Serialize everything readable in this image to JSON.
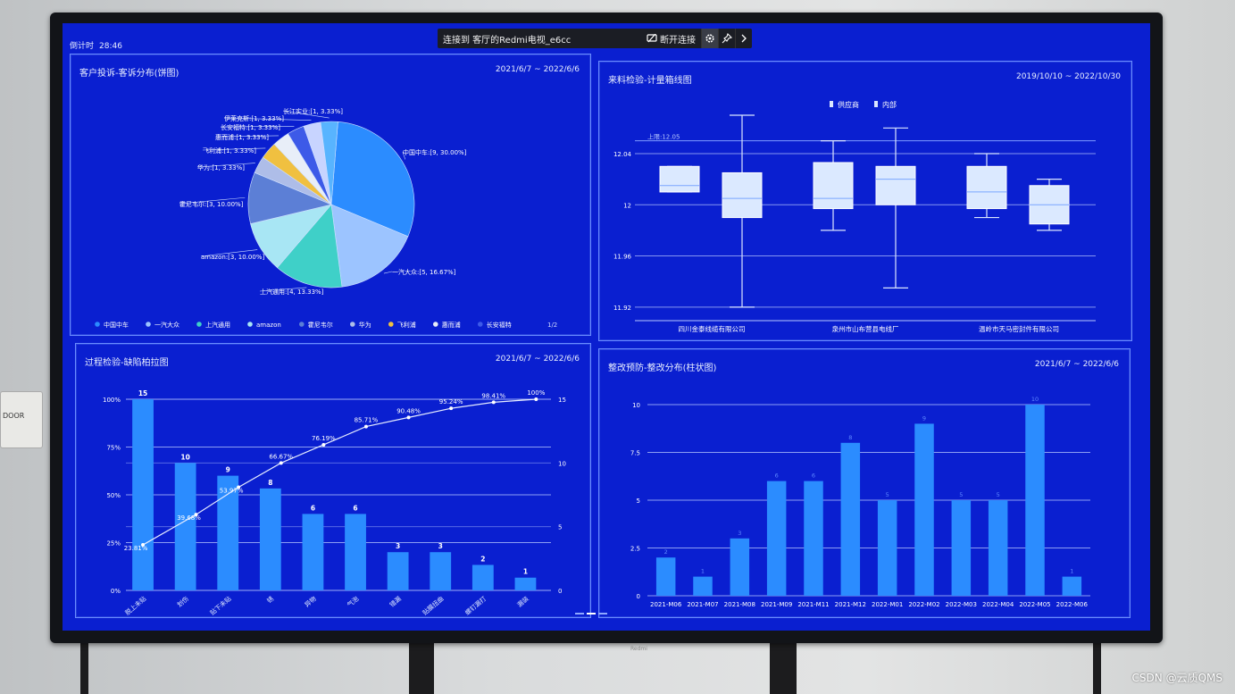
{
  "screen": {
    "timer_label": "倒计时",
    "timer_value": "28:46",
    "connection_text": "连接到 客厅的Redmi电视_e6cc",
    "disconnect_label": "断开连接",
    "brand": "Redmi",
    "doorplate": "DOOR",
    "watermark": "CSDN @云质QMS",
    "colors": {
      "screen_bg": "#0a1fd0",
      "bar": "#2b8cff",
      "grid": "#b8c8ff"
    }
  },
  "panels": {
    "pie": {
      "title": "客户投诉-客诉分布(饼图)",
      "range": "2021/6/7 ~ 2022/6/6",
      "page": "1/2"
    },
    "box": {
      "title": "来料检验-计量箱线图",
      "range": "2019/10/10 ~ 2022/10/30",
      "limit_label": "上限:12.05"
    },
    "pareto": {
      "title": "过程检验-缺陷柏拉图",
      "range": "2021/6/7 ~ 2022/6/6"
    },
    "bar": {
      "title": "整改预防-整改分布(柱状图)",
      "range": "2021/6/7 ~ 2022/6/6"
    }
  },
  "chart_data": [
    {
      "type": "pie",
      "title": "客户投诉-客诉分布(饼图)",
      "slices": [
        {
          "name": "中国中车",
          "value": 9,
          "pct": "30.00%",
          "color": "#2b8cff"
        },
        {
          "name": "一汽大众",
          "value": 5,
          "pct": "16.67%",
          "color": "#9cc4ff"
        },
        {
          "name": "上汽通用",
          "value": 4,
          "pct": "13.33%",
          "color": "#3fd0c8"
        },
        {
          "name": "amazon",
          "value": 3,
          "pct": "10.00%",
          "color": "#a8e6f4"
        },
        {
          "name": "霍尼韦尔",
          "value": 3,
          "pct": "10.00%",
          "color": "#5c7fd6"
        },
        {
          "name": "华为",
          "value": 1,
          "pct": "3.33%",
          "color": "#aebde8"
        },
        {
          "name": "飞利浦",
          "value": 1,
          "pct": "3.33%",
          "color": "#f0c040"
        },
        {
          "name": "惠而浦",
          "value": 1,
          "pct": "3.33%",
          "color": "#e8eef8"
        },
        {
          "name": "长安福特",
          "value": 1,
          "pct": "3.33%",
          "color": "#3d5ae8"
        },
        {
          "name": "伊莱克斯",
          "value": 1,
          "pct": "3.33%",
          "color": "#c8d4ff"
        },
        {
          "name": "长江实业",
          "value": 1,
          "pct": "3.33%",
          "color": "#58b4ff"
        }
      ],
      "legend": [
        "中国中车",
        "一汽大众",
        "上汽通用",
        "amazon",
        "霍尼韦尔",
        "华为",
        "飞利浦",
        "惠而浦",
        "长安福特"
      ],
      "legend_placement": "bottom"
    },
    {
      "type": "box",
      "title": "来料检验-计量箱线图",
      "legend": [
        "供应商",
        "内部"
      ],
      "legend_placement": "top",
      "categories": [
        "四川金泰线缆有限公司",
        "泉州市山布营县电线厂",
        "温岭市天马密封件有限公司"
      ],
      "yticks": [
        12.04,
        12,
        11.96,
        11.92
      ],
      "ylim": [
        11.915,
        12.07
      ],
      "upper_limit": 12.05,
      "boxes": [
        {
          "category": "四川金泰线缆有限公司",
          "series": "供应商",
          "min": 12.01,
          "q1": 12.01,
          "median": 12.015,
          "q3": 12.03,
          "max": 12.03
        },
        {
          "category": "四川金泰线缆有限公司",
          "series": "内部",
          "min": 11.92,
          "q1": 11.99,
          "median": 12.005,
          "q3": 12.025,
          "max": 12.07
        },
        {
          "category": "泉州市山布营县电线厂",
          "series": "供应商",
          "min": 11.98,
          "q1": 11.997,
          "median": 12.005,
          "q3": 12.033,
          "max": 12.05
        },
        {
          "category": "泉州市山布营县电线厂",
          "series": "内部",
          "min": 11.935,
          "q1": 12.0,
          "median": 12.02,
          "q3": 12.03,
          "max": 12.06
        },
        {
          "category": "温岭市天马密封件有限公司",
          "series": "供应商",
          "min": 11.99,
          "q1": 11.997,
          "median": 12.01,
          "q3": 12.03,
          "max": 12.04
        },
        {
          "category": "温岭市天马密封件有限公司",
          "series": "内部",
          "min": 11.98,
          "q1": 11.985,
          "median": 12.0,
          "q3": 12.015,
          "max": 12.02
        }
      ]
    },
    {
      "type": "bar",
      "title": "过程检验-缺陷柏拉图",
      "categories": [
        "脱上未贴",
        "划伤",
        "贴下未贴",
        "锈",
        "异物",
        "气泡",
        "错漏",
        "贴膜扭曲",
        "螺钉漏打",
        "漏装"
      ],
      "values": [
        15,
        10,
        9,
        8,
        6,
        6,
        3,
        3,
        2,
        1
      ],
      "cumulative": [
        23.81,
        39.68,
        53.97,
        66.67,
        76.19,
        85.71,
        90.48,
        95.24,
        98.41,
        100
      ],
      "cumulative_labels": [
        "23.81%",
        "39.68%",
        "53.97%",
        "66.67%",
        "76.19%",
        "85.71%",
        "90.48%",
        "95.24%",
        "98.41%",
        "100%"
      ],
      "yticks_left": [
        "0%",
        "25%",
        "50%",
        "75%",
        "100%"
      ],
      "yticks_right": [
        "0",
        "5",
        "10",
        "15"
      ],
      "ylim": [
        0,
        15
      ]
    },
    {
      "type": "bar",
      "title": "整改预防-整改分布(柱状图)",
      "categories": [
        "2021-M06",
        "2021-M07",
        "2021-M08",
        "2021-M09",
        "2021-M11",
        "2021-M12",
        "2022-M01",
        "2022-M02",
        "2022-M03",
        "2022-M04",
        "2022-M05",
        "2022-M06"
      ],
      "values": [
        2,
        1,
        3,
        6,
        6,
        8,
        5,
        9,
        5,
        5,
        10,
        1
      ],
      "yticks": [
        "0",
        "2.5",
        "5",
        "7.5",
        "10"
      ],
      "ylim": [
        0,
        10
      ]
    }
  ]
}
